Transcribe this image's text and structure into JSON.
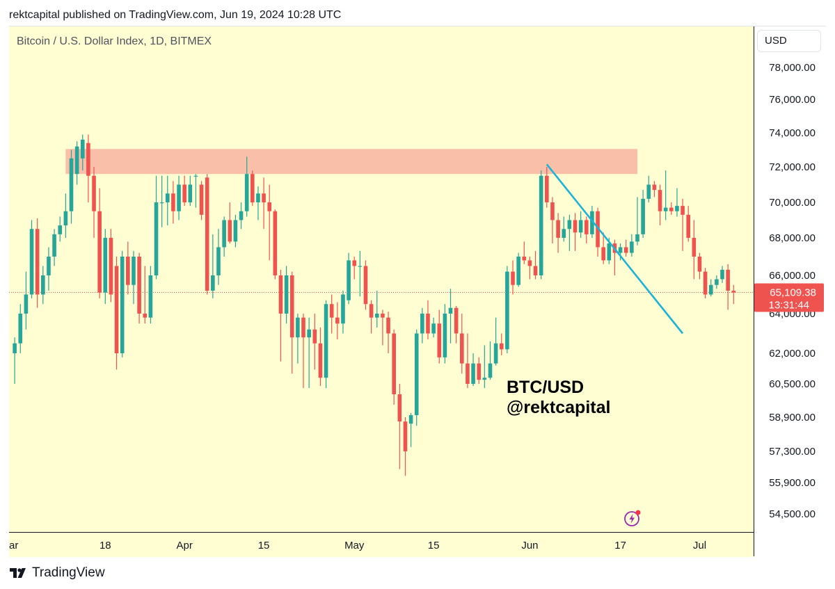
{
  "caption": "rektcapital published on TradingView.com, Jun 19, 2024 10:28 UTC",
  "footer": {
    "brand": "TradingView",
    "logo_icon": "tradingview-logo-icon"
  },
  "chart_data": {
    "type": "candlestick",
    "title": "Bitcoin / U.S. Dollar Index, 1D, BITMEX",
    "currency": "USD",
    "watermark": [
      "BTC/USD",
      "@rektcapital"
    ],
    "y_ticks": [
      "78,000.00",
      "76,000.00",
      "74,000.00",
      "72,000.00",
      "70,000.00",
      "68,000.00",
      "66,000.00",
      "64,000.00",
      "62,000.00",
      "60,500.00",
      "58,900.00",
      "57,300.00",
      "55,900.00",
      "54,500.00"
    ],
    "y_tick_values": [
      78000,
      76000,
      74000,
      72000,
      70000,
      68000,
      66000,
      64000,
      62000,
      60500,
      58900,
      57300,
      55900,
      54500
    ],
    "x_ticks": [
      {
        "label": "ar",
        "day": -0.2
      },
      {
        "label": "18",
        "day": 17
      },
      {
        "label": "Apr",
        "day": 31
      },
      {
        "label": "15",
        "day": 45
      },
      {
        "label": "May",
        "day": 61
      },
      {
        "label": "15",
        "day": 75
      },
      {
        "label": "Jun",
        "day": 92
      },
      {
        "label": "17",
        "day": 108
      },
      {
        "label": "Jul",
        "day": 122
      }
    ],
    "last_price": {
      "value": 65109.38,
      "label": "65,109.38",
      "countdown": "13:31:44"
    },
    "resistance_zone": {
      "low": 71600,
      "high": 73050,
      "from_day": 10,
      "to_day": 111
    },
    "trendline": {
      "from": {
        "day": 95,
        "price": 72150
      },
      "to": {
        "day": 119,
        "price": 63000
      }
    },
    "up_color": "#26a69a",
    "down_color": "#ef5350",
    "zone_color": "#f9bfa8",
    "trendline_color": "#1ab4d6",
    "candles": [
      [
        1,
        62000,
        62500,
        60500,
        62800
      ],
      [
        2,
        62500,
        64000,
        62000,
        64500
      ],
      [
        3,
        64000,
        65000,
        63200,
        66200
      ],
      [
        4,
        65000,
        68500,
        64800,
        69000
      ],
      [
        5,
        68500,
        65000,
        64300,
        69100
      ],
      [
        6,
        65000,
        66000,
        64500,
        66500
      ],
      [
        7,
        66000,
        67000,
        65200,
        67500
      ],
      [
        8,
        67000,
        68200,
        66500,
        68500
      ],
      [
        9,
        68200,
        68700,
        67800,
        69200
      ],
      [
        10,
        68700,
        69500,
        68000,
        70500
      ],
      [
        11,
        69500,
        72500,
        68800,
        73000
      ],
      [
        12,
        71600,
        73200,
        71000,
        73500
      ],
      [
        13,
        72500,
        73600,
        71800,
        73900
      ],
      [
        14,
        73400,
        71500,
        70000,
        73900
      ],
      [
        15,
        71500,
        69500,
        68000,
        72000
      ],
      [
        16,
        69500,
        65100,
        64800,
        70800
      ],
      [
        17,
        65100,
        68000,
        64500,
        68500
      ],
      [
        18,
        68000,
        65000,
        64600,
        68500
      ],
      [
        19,
        66500,
        62000,
        61200,
        67000
      ],
      [
        20,
        62000,
        67000,
        61800,
        67300
      ],
      [
        21,
        67000,
        65500,
        65000,
        67800
      ],
      [
        22,
        65500,
        67000,
        64500,
        67300
      ],
      [
        23,
        67000,
        64000,
        63500,
        67200
      ],
      [
        24,
        64000,
        63800,
        63500,
        66500
      ],
      [
        25,
        63800,
        66000,
        63500,
        66500
      ],
      [
        26,
        66000,
        70000,
        65800,
        71500
      ],
      [
        27,
        70000,
        70000,
        68600,
        71500
      ],
      [
        28,
        70000,
        70500,
        68700,
        71500
      ],
      [
        29,
        70500,
        69500,
        68800,
        71200
      ],
      [
        30,
        69500,
        71000,
        69000,
        71500
      ],
      [
        31,
        71000,
        70000,
        69800,
        71500
      ],
      [
        32,
        70000,
        71000,
        69800,
        71500
      ],
      [
        33,
        71500,
        71500,
        69700,
        71600
      ],
      [
        34,
        71000,
        69300,
        69000,
        71200
      ],
      [
        35,
        71400,
        65200,
        65000,
        71600
      ],
      [
        36,
        65200,
        66000,
        64800,
        68200
      ],
      [
        37,
        66000,
        67500,
        65500,
        68500
      ],
      [
        38,
        67500,
        69000,
        67000,
        69200
      ],
      [
        39,
        69000,
        67800,
        67700,
        70000
      ],
      [
        40,
        67800,
        69000,
        67500,
        69300
      ],
      [
        41,
        69000,
        69500,
        68500,
        70000
      ],
      [
        42,
        69500,
        71600,
        69200,
        72600
      ],
      [
        43,
        71600,
        70000,
        69800,
        71800
      ],
      [
        44,
        70000,
        70500,
        69000,
        70900
      ],
      [
        45,
        70500,
        70000,
        68500,
        71400
      ],
      [
        46,
        70000,
        69500,
        66800,
        71000
      ],
      [
        47,
        69500,
        66000,
        65800,
        69600
      ],
      [
        48,
        66000,
        64000,
        61600,
        66300
      ],
      [
        49,
        64000,
        66000,
        63500,
        66500
      ],
      [
        50,
        66000,
        62800,
        61000,
        66200
      ],
      [
        51,
        62800,
        63800,
        61500,
        64000
      ],
      [
        52,
        63800,
        62800,
        60300,
        64000
      ],
      [
        53,
        62800,
        63200,
        60300,
        63800
      ],
      [
        54,
        63200,
        62500,
        61200,
        64000
      ],
      [
        55,
        62500,
        60800,
        60400,
        63300
      ],
      [
        56,
        60800,
        64500,
        60300,
        64700
      ],
      [
        57,
        64500,
        63800,
        63000,
        65000
      ],
      [
        58,
        63800,
        63500,
        62700,
        64600
      ],
      [
        59,
        63500,
        65000,
        63000,
        65200
      ],
      [
        60,
        64700,
        66800,
        64500,
        67200
      ],
      [
        61,
        66800,
        66500,
        65800,
        67000
      ],
      [
        62,
        66500,
        66500,
        64900,
        67300
      ],
      [
        63,
        66500,
        64500,
        64200,
        66800
      ],
      [
        64,
        64500,
        63800,
        63000,
        64700
      ],
      [
        65,
        63800,
        64000,
        63300,
        65200
      ],
      [
        66,
        64000,
        63800,
        62400,
        64200
      ],
      [
        67,
        63800,
        63000,
        62000,
        64100
      ],
      [
        68,
        63000,
        60000,
        59500,
        63200
      ],
      [
        69,
        60000,
        58700,
        56500,
        60500
      ],
      [
        70,
        58700,
        57300,
        56200,
        58900
      ],
      [
        71,
        58600,
        59000,
        57500,
        59100
      ],
      [
        72,
        59000,
        63000,
        58500,
        63200
      ],
      [
        73,
        63000,
        64000,
        62500,
        64300
      ],
      [
        74,
        64000,
        63000,
        62700,
        64700
      ],
      [
        75,
        63000,
        63500,
        62800,
        63800
      ],
      [
        76,
        63500,
        61800,
        61500,
        64200
      ],
      [
        77,
        61800,
        64000,
        61500,
        64500
      ],
      [
        78,
        64000,
        64300,
        62500,
        65300
      ],
      [
        79,
        64300,
        63000,
        62500,
        64400
      ],
      [
        80,
        63000,
        61500,
        61000,
        64000
      ],
      [
        81,
        61500,
        60500,
        60300,
        63000
      ],
      [
        82,
        60500,
        61500,
        60400,
        62000
      ],
      [
        83,
        61500,
        60700,
        60500,
        61800
      ],
      [
        84,
        60700,
        60800,
        60300,
        62400
      ],
      [
        85,
        60800,
        61500,
        60700,
        62600
      ],
      [
        86,
        61500,
        62500,
        61400,
        63800
      ],
      [
        87,
        62500,
        62200,
        61900,
        63000
      ],
      [
        88,
        62200,
        66200,
        62000,
        66500
      ],
      [
        89,
        66200,
        65500,
        65000,
        66800
      ],
      [
        90,
        65500,
        67000,
        65400,
        67200
      ],
      [
        91,
        67000,
        66800,
        66600,
        67800
      ],
      [
        92,
        66800,
        66500,
        65800,
        67000
      ],
      [
        93,
        66500,
        66000,
        65800,
        67300
      ],
      [
        94,
        66000,
        71500,
        65800,
        71800
      ],
      [
        95,
        71500,
        70000,
        69700,
        72000
      ],
      [
        96,
        70000,
        69000,
        67700,
        70300
      ],
      [
        97,
        69000,
        68000,
        67200,
        69400
      ],
      [
        98,
        68000,
        68500,
        67800,
        69200
      ],
      [
        99,
        68500,
        69000,
        67300,
        69300
      ],
      [
        100,
        69000,
        68300,
        67300,
        69400
      ],
      [
        101,
        68300,
        69000,
        68000,
        69500
      ],
      [
        102,
        69000,
        68200,
        67700,
        69200
      ],
      [
        103,
        68200,
        69500,
        68000,
        69800
      ],
      [
        104,
        69500,
        67500,
        67000,
        69700
      ],
      [
        105,
        67500,
        66800,
        66600,
        68300
      ],
      [
        106,
        66800,
        67700,
        66600,
        68000
      ],
      [
        107,
        67700,
        67200,
        66000,
        67900
      ],
      [
        108,
        67200,
        67500,
        66800,
        67700
      ],
      [
        109,
        67500,
        67200,
        67000,
        67900
      ],
      [
        110,
        67200,
        67800,
        67000,
        68200
      ],
      [
        111,
        67800,
        68200,
        67600,
        70300
      ],
      [
        112,
        68200,
        70200,
        68000,
        70700
      ],
      [
        113,
        70200,
        71000,
        70000,
        71500
      ],
      [
        114,
        71000,
        70700,
        70300,
        71200
      ],
      [
        115,
        70700,
        69500,
        68700,
        71000
      ],
      [
        116,
        69500,
        69700,
        69000,
        71800
      ],
      [
        117,
        69700,
        69500,
        69300,
        70000
      ],
      [
        118,
        69500,
        69800,
        69200,
        70800
      ],
      [
        119,
        69800,
        69300,
        67300,
        70200
      ],
      [
        120,
        69300,
        68000,
        67800,
        69800
      ],
      [
        121,
        68000,
        67000,
        65800,
        69000
      ],
      [
        122,
        67000,
        66200,
        65800,
        67200
      ],
      [
        123,
        66200,
        65000,
        64800,
        66400
      ],
      [
        124,
        65000,
        65500,
        64900,
        65800
      ],
      [
        125,
        65500,
        65800,
        65300,
        66000
      ],
      [
        126,
        65800,
        66300,
        65600,
        66500
      ],
      [
        127,
        66300,
        65200,
        64200,
        66600
      ],
      [
        128,
        65200,
        65100,
        64500,
        65500
      ]
    ]
  }
}
